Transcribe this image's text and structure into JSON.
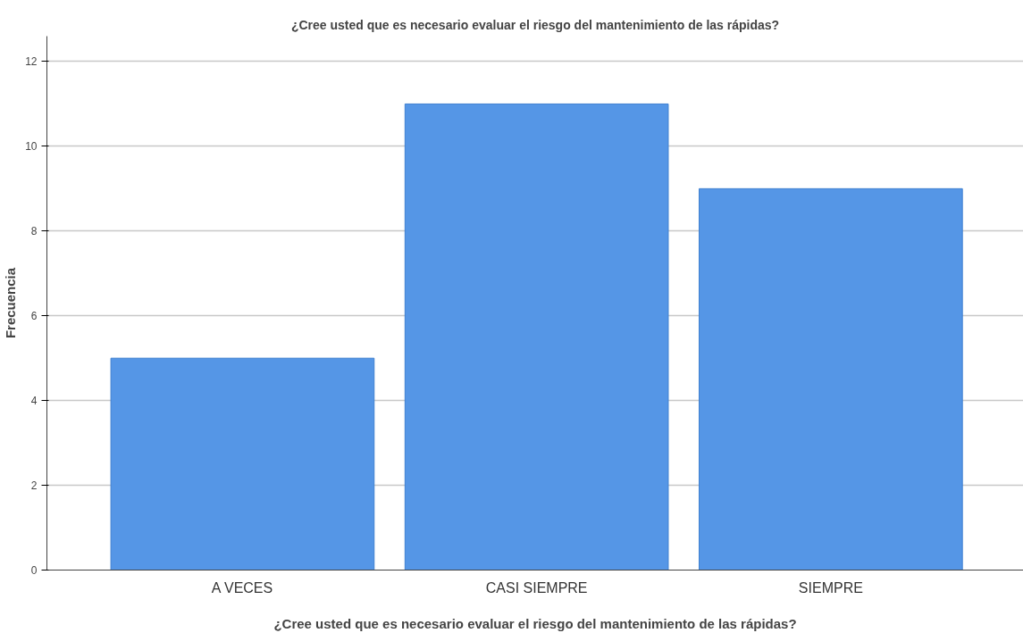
{
  "chart_data": {
    "type": "bar",
    "title": "¿Cree usted que es necesario evaluar el riesgo del mantenimiento de las rápidas?",
    "xlabel": "¿Cree usted que es necesario evaluar el riesgo del mantenimiento de las rápidas?",
    "ylabel": "Frecuencia",
    "categories": [
      "A VECES",
      "CASI SIEMPRE",
      "SIEMPRE"
    ],
    "values": [
      5,
      11,
      9
    ],
    "color": "#5596e6",
    "ylim": [
      0,
      12.6
    ],
    "yticks": [
      0,
      2,
      4,
      6,
      8,
      10,
      12
    ],
    "grid": "y"
  }
}
